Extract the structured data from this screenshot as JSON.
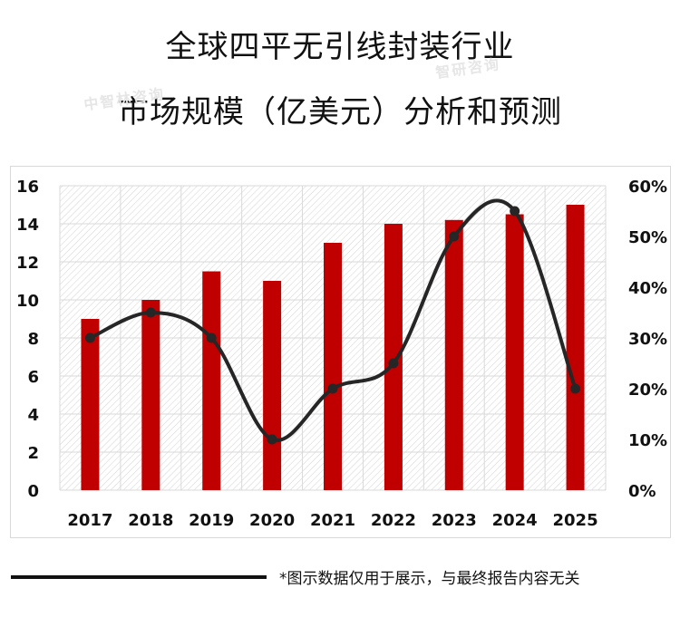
{
  "title": {
    "line1": "全球四平无引线封装行业",
    "line2": "市场规模（亿美元）分析和预测"
  },
  "watermarks": [
    "中智林咨询",
    "智研咨询"
  ],
  "footnote": "*图示数据仅用于展示，与最终报告内容无关",
  "colors": {
    "bar": "#c00000",
    "line": "#262626",
    "marker": "#262626",
    "grid": "#d9d9d9",
    "plot_hatch": "#cfcfcf"
  },
  "chart_data": {
    "type": "bar",
    "categories": [
      "2017",
      "2018",
      "2019",
      "2020",
      "2021",
      "2022",
      "2023",
      "2024",
      "2025"
    ],
    "series": [
      {
        "type": "bar",
        "axis": "left",
        "values": [
          9,
          10,
          11.5,
          11,
          13,
          14,
          14.2,
          14.5,
          15
        ]
      },
      {
        "type": "line",
        "axis": "right",
        "smooth": true,
        "values": [
          0.3,
          0.35,
          0.3,
          0.1,
          0.2,
          0.25,
          0.5,
          0.55,
          0.2
        ]
      }
    ],
    "y_left": {
      "min": 0,
      "max": 16,
      "ticks": [
        "0",
        "2",
        "4",
        "6",
        "8",
        "10",
        "12",
        "14",
        "16"
      ]
    },
    "y_right": {
      "min": 0,
      "max": 0.6,
      "ticks": [
        "0%",
        "10%",
        "20%",
        "30%",
        "40%",
        "50%",
        "60%"
      ]
    },
    "grid": true,
    "legend": "none"
  }
}
